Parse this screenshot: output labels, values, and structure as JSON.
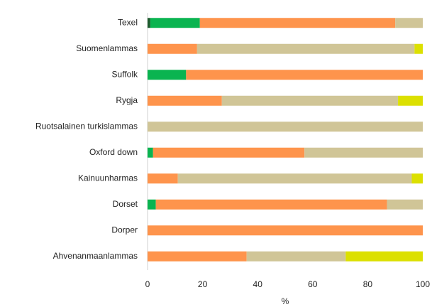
{
  "chart_data": {
    "type": "stacked_barh",
    "categories": [
      "Texel",
      "Suomenlammas",
      "Suffolk",
      "Rygja",
      "Ruotsalainen turkislammas",
      "Oxford down",
      "Kainuunharmas",
      "Dorset",
      "Dorper",
      "Ahvenanmaanlammas"
    ],
    "series": [
      {
        "color": "#1d5b2e",
        "values": [
          1,
          0,
          0,
          0,
          0,
          0,
          0,
          0,
          0,
          0
        ]
      },
      {
        "color": "#0ab450",
        "values": [
          18,
          0,
          14,
          0,
          0,
          2,
          0,
          3,
          0,
          0
        ]
      },
      {
        "color": "#fe944c",
        "values": [
          71,
          18,
          86,
          27,
          0,
          55,
          11,
          84,
          100,
          36
        ]
      },
      {
        "color": "#d0c597",
        "values": [
          10,
          79,
          0,
          64,
          100,
          43,
          85,
          13,
          0,
          36
        ]
      },
      {
        "color": "#dce000",
        "values": [
          0,
          3,
          0,
          9,
          0,
          0,
          4,
          0,
          0,
          28
        ]
      }
    ],
    "xlabel": "%",
    "xlim": [
      0,
      100
    ],
    "xticks": [
      0,
      20,
      40,
      60,
      80,
      100
    ],
    "grid": false
  }
}
